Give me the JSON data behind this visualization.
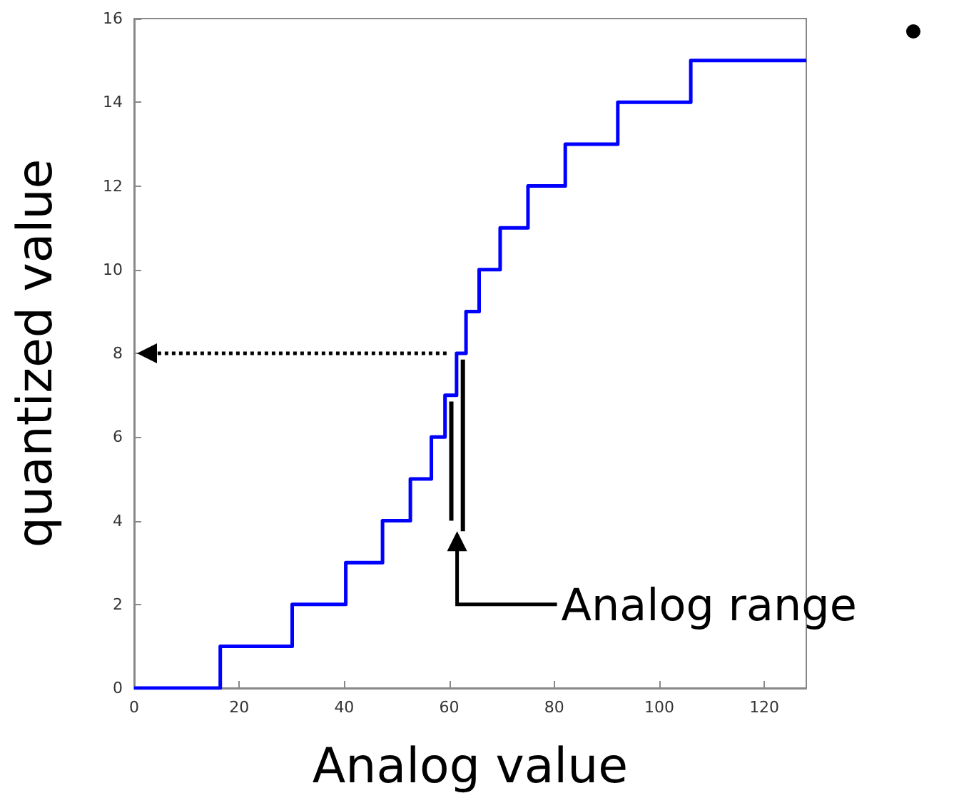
{
  "chart_data": {
    "type": "step",
    "xlabel": "Analog value",
    "ylabel": "quantized value",
    "x": [
      0,
      16.4,
      30.1,
      40.3,
      47.3,
      52.6,
      56.6,
      59.2,
      61.4,
      63.2,
      65.7,
      69.7,
      75,
      82.1,
      92.1,
      106,
      128
    ],
    "series": [
      {
        "color": "#0000ff",
        "values": [
          0,
          1,
          2,
          3,
          4,
          5,
          6,
          7,
          8,
          9,
          10,
          11,
          12,
          13,
          14,
          15,
          15
        ]
      }
    ],
    "xlim": [
      0,
      128
    ],
    "xticks": [
      0,
      20,
      40,
      60,
      80,
      100,
      120
    ],
    "ylim": [
      0,
      16
    ],
    "yticks": [
      0,
      2,
      4,
      6,
      8,
      10,
      12,
      14,
      16
    ],
    "annotations": [
      "Analog range"
    ],
    "marker": "none",
    "line_style": "solid"
  }
}
